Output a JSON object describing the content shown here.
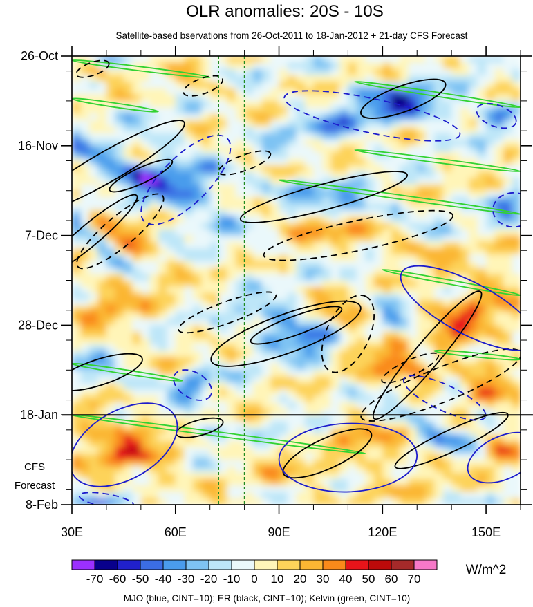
{
  "chart_data": {
    "type": "heatmap",
    "title": "OLR anomalies: 20S - 10S",
    "subtitle": "Satellite-based bservations from 26-Oct-2011 to 18-Jan-2012 + 21-day CFS Forecast",
    "x_axis": {
      "range": [
        30,
        160
      ],
      "ticks": [
        30,
        60,
        90,
        120,
        150
      ],
      "tick_labels": [
        "30E",
        "60E",
        "90E",
        "120E",
        "150E"
      ]
    },
    "y_axis": {
      "range_days": [
        0,
        105
      ],
      "ticks": [
        0,
        21,
        42,
        63,
        84,
        105
      ],
      "tick_labels": [
        "26-Oct",
        "16-Nov",
        "7-Dec",
        "28-Dec",
        "18-Jan",
        "8-Feb"
      ],
      "direction": "top-to-bottom"
    },
    "forecast_start_day": 84,
    "forecast_label": [
      "CFS",
      "Forecast"
    ],
    "reference_lines_lon": [
      72.5,
      80
    ],
    "colorbar": {
      "units": "W/m^2",
      "levels": [
        -70,
        -60,
        -50,
        -40,
        -30,
        -20,
        -10,
        0,
        10,
        20,
        30,
        40,
        50,
        60,
        70
      ],
      "colors": [
        "#9b30ff",
        "#08008c",
        "#2020cc",
        "#3b6de4",
        "#4a9cec",
        "#7ec3f3",
        "#bde6f8",
        "#eaf8fb",
        "#fff5b8",
        "#fdd35a",
        "#fbb633",
        "#fa8a1a",
        "#e8141a",
        "#bd0a0a",
        "#a52a2a",
        "#f778c8"
      ]
    },
    "footnote": "MJO (blue, CINT=10); ER (black, CINT=10); Kelvin (green, CINT=10)",
    "contours": [
      {
        "field": "ER",
        "sign": "pos",
        "lon": 40,
        "day": 26,
        "rx": 26,
        "ry": 3.5,
        "angle": -30
      },
      {
        "field": "ER",
        "sign": "pos",
        "lon": 35,
        "day": 42,
        "rx": 18,
        "ry": 2.5,
        "angle": -40
      },
      {
        "field": "ER",
        "sign": "pos",
        "lon": 50,
        "day": 28,
        "rx": 10,
        "ry": 1.8,
        "angle": -25
      },
      {
        "field": "ER",
        "sign": "pos",
        "lon": 126,
        "day": 10,
        "rx": 13,
        "ry": 3,
        "angle": -20
      },
      {
        "field": "ER",
        "sign": "pos",
        "lon": 103,
        "day": 33,
        "rx": 25,
        "ry": 3,
        "angle": -15
      },
      {
        "field": "ER",
        "sign": "pos",
        "lon": 92,
        "day": 65,
        "rx": 23,
        "ry": 4.5,
        "angle": -20
      },
      {
        "field": "ER",
        "sign": "pos",
        "lon": 95,
        "day": 63,
        "rx": 14,
        "ry": 2.2,
        "angle": -20
      },
      {
        "field": "ER",
        "sign": "pos",
        "lon": 133,
        "day": 70,
        "rx": 24,
        "ry": 3,
        "angle": -50
      },
      {
        "field": "ER",
        "sign": "pos",
        "lon": 38,
        "day": 74,
        "rx": 13,
        "ry": 3,
        "angle": -18
      },
      {
        "field": "ER",
        "sign": "pos",
        "lon": 104,
        "day": 93,
        "rx": 14,
        "ry": 3.5,
        "angle": -25
      },
      {
        "field": "ER",
        "sign": "pos",
        "lon": 140,
        "day": 90,
        "rx": 18,
        "ry": 2.5,
        "angle": -25
      },
      {
        "field": "ER",
        "sign": "pos",
        "lon": 67,
        "day": 87,
        "rx": 7,
        "ry": 1.8,
        "angle": -15
      },
      {
        "field": "ER",
        "sign": "neg",
        "lon": 44,
        "day": 41,
        "rx": 16,
        "ry": 3.5,
        "angle": -40
      },
      {
        "field": "ER",
        "sign": "neg",
        "lon": 75,
        "day": 60,
        "rx": 15,
        "ry": 2.5,
        "angle": -20
      },
      {
        "field": "ER",
        "sign": "neg",
        "lon": 113,
        "day": 42,
        "rx": 28,
        "ry": 3.5,
        "angle": -12
      },
      {
        "field": "ER",
        "sign": "neg",
        "lon": 110,
        "day": 65,
        "rx": 12,
        "ry": 5,
        "angle": -65
      },
      {
        "field": "ER",
        "sign": "neg",
        "lon": 137,
        "day": 77,
        "rx": 25,
        "ry": 4,
        "angle": -22
      },
      {
        "field": "ER",
        "sign": "neg",
        "lon": 68,
        "day": 7,
        "rx": 6,
        "ry": 1.8,
        "angle": -20
      },
      {
        "field": "ER",
        "sign": "neg",
        "lon": 36,
        "day": 3,
        "rx": 5,
        "ry": 1.5,
        "angle": -20
      },
      {
        "field": "ER",
        "sign": "neg",
        "lon": 80,
        "day": 25,
        "rx": 8,
        "ry": 1.8,
        "angle": -20
      },
      {
        "field": "ER",
        "sign": "neg",
        "lon": 128,
        "day": 73,
        "rx": 9,
        "ry": 1.8,
        "angle": -25
      },
      {
        "field": "MJO",
        "sign": "neg",
        "lon": 63,
        "day": 29,
        "rx": 17,
        "ry": 5.5,
        "angle": -45
      },
      {
        "field": "MJO",
        "sign": "pos",
        "lon": 45,
        "day": 91,
        "rx": 17,
        "ry": 8,
        "angle": -30
      },
      {
        "field": "MJO",
        "sign": "pos",
        "lon": 110,
        "day": 94,
        "rx": 20,
        "ry": 8,
        "angle": -2
      },
      {
        "field": "MJO",
        "sign": "pos",
        "lon": 155,
        "day": 94,
        "rx": 11,
        "ry": 5,
        "angle": -25
      },
      {
        "field": "MJO",
        "sign": "pos",
        "lon": 145,
        "day": 59,
        "rx": 22,
        "ry": 6,
        "angle": 28
      },
      {
        "field": "MJO",
        "sign": "neg",
        "lon": 117,
        "day": 14,
        "rx": 26,
        "ry": 4,
        "angle": 12
      },
      {
        "field": "MJO",
        "sign": "neg",
        "lon": 153,
        "day": 14,
        "rx": 6,
        "ry": 2.5,
        "angle": 20
      },
      {
        "field": "MJO",
        "sign": "neg",
        "lon": 158,
        "day": 36,
        "rx": 6,
        "ry": 4,
        "angle": 0
      },
      {
        "field": "MJO",
        "sign": "neg",
        "lon": 65,
        "day": 77,
        "rx": 6,
        "ry": 3,
        "angle": 30
      },
      {
        "field": "MJO",
        "sign": "neg",
        "lon": 138,
        "day": 80,
        "rx": 13,
        "ry": 3,
        "angle": 25
      },
      {
        "field": "MJO",
        "sign": "neg",
        "lon": 40,
        "day": 104,
        "rx": 8,
        "ry": 1.5,
        "angle": 10
      }
    ],
    "kelvin_bands": [
      {
        "lon": [
          30,
          70
        ],
        "day": [
          1,
          5
        ]
      },
      {
        "lon": [
          112,
          160
        ],
        "day": [
          6,
          12
        ]
      },
      {
        "lon": [
          30,
          55
        ],
        "day": [
          10,
          13
        ]
      },
      {
        "lon": [
          112,
          160
        ],
        "day": [
          22,
          27
        ]
      },
      {
        "lon": [
          90,
          160
        ],
        "day": [
          29,
          37
        ]
      },
      {
        "lon": [
          120,
          160
        ],
        "day": [
          50,
          56
        ]
      },
      {
        "lon": [
          30,
          62
        ],
        "day": [
          72,
          76
        ]
      },
      {
        "lon": [
          135,
          160
        ],
        "day": [
          69,
          71
        ]
      },
      {
        "lon": [
          30,
          115
        ],
        "day": [
          84,
          93
        ]
      }
    ]
  }
}
